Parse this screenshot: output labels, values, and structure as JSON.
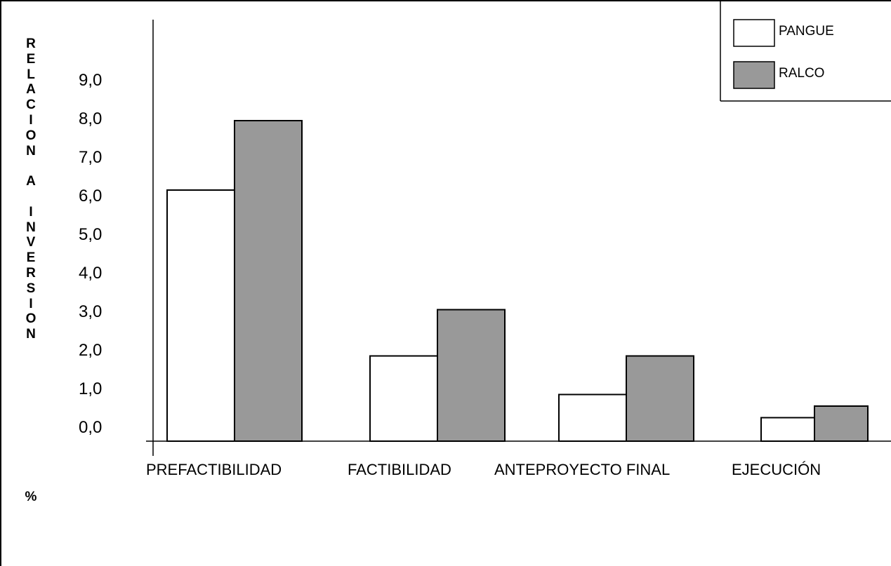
{
  "chart_data": {
    "type": "bar",
    "title": "",
    "xlabel": "",
    "ylabel": "RELACION A INVERSION",
    "ylabel_unit": "%",
    "categories": [
      "PREFACTIBILIDAD",
      "FACTIBILIDAD",
      "ANTEPROYECTO FINAL",
      "EJECUCIÓN"
    ],
    "series": [
      {
        "name": "PANGUE",
        "values": [
          6.4,
          2.1,
          1.1,
          0.5
        ],
        "color": "#ffffff"
      },
      {
        "name": "RALCO",
        "values": [
          8.2,
          3.3,
          2.1,
          0.8
        ],
        "color": "#999999"
      }
    ],
    "y_ticks": [
      "0,0",
      "1,0",
      "2,0",
      "3,0",
      "4,0",
      "5,0",
      "6,0",
      "7,0",
      "8,0",
      "9,0"
    ],
    "ylim": [
      0,
      9
    ],
    "grid": false,
    "legend_position": "top-right"
  }
}
